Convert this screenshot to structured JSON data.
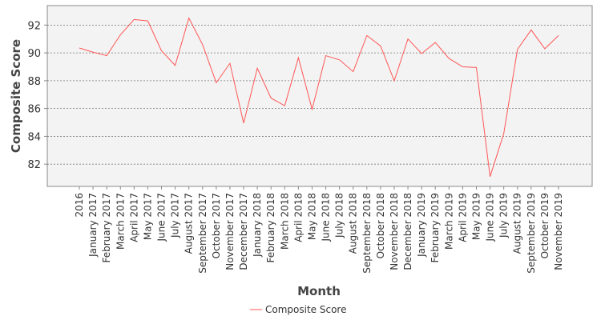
{
  "chart_data": {
    "type": "line",
    "title": "",
    "xlabel": "Month",
    "ylabel": "Composite Score",
    "ylim": [
      80.4,
      93.4
    ],
    "yticks": [
      82,
      84,
      86,
      88,
      90,
      92
    ],
    "grid": true,
    "legend": "bottom-center",
    "colors": {
      "series": "#ff5555",
      "plot_bg": "#f3f3f3",
      "grid": "#777777",
      "frame": "#888888"
    },
    "categories": [
      "2016",
      "January 2017",
      "February 2017",
      "March 2017",
      "April 2017",
      "May 2017",
      "June 2017",
      "July 2017",
      "August 2017",
      "September 2017",
      "October 2017",
      "November 2017",
      "December 2017",
      "January 2018",
      "February 2018",
      "March 2018",
      "April 2018",
      "May 2018",
      "June 2018",
      "July 2018",
      "August 2018",
      "September 2018",
      "October 2018",
      "November 2018",
      "December 2018",
      "January 2019",
      "February 2019",
      "March 2019",
      "April 2019",
      "May 2019",
      "June 2019",
      "July 2019",
      "August 2019",
      "September 2019",
      "October 2019",
      "November 2019"
    ],
    "series": [
      {
        "name": "Composite Score",
        "values": [
          90.35,
          90.05,
          89.8,
          91.3,
          92.4,
          92.3,
          90.15,
          89.1,
          92.5,
          90.6,
          87.85,
          89.25,
          84.95,
          88.9,
          86.75,
          86.2,
          89.65,
          85.95,
          89.8,
          89.5,
          88.65,
          91.25,
          90.5,
          88.0,
          91.0,
          89.95,
          90.75,
          89.6,
          89.0,
          88.95,
          81.1,
          84.2,
          90.25,
          91.65,
          90.3,
          91.25
        ]
      }
    ]
  }
}
